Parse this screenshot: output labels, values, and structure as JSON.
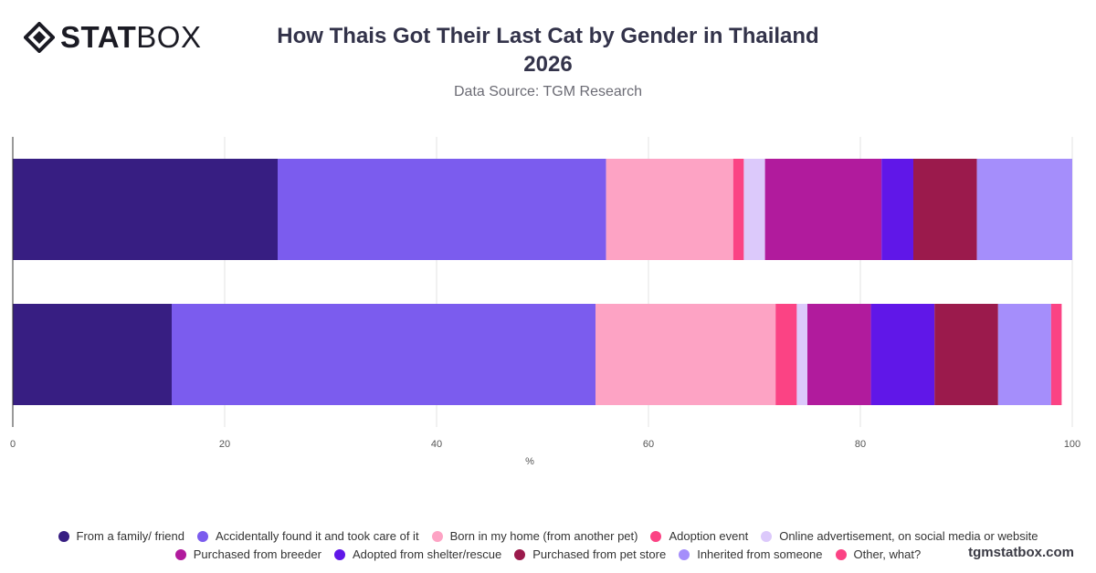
{
  "brand": {
    "logo_bold": "STAT",
    "logo_light": "BOX"
  },
  "title_line1": "How Thais Got Their Last Cat by Gender in Thailand",
  "title_line2": "2026",
  "subtitle": "Data Source: TGM Research",
  "watermark": "tgmstatbox.com",
  "chart_data": {
    "type": "bar",
    "orientation": "horizontal",
    "stacked": true,
    "title": "How Thais Got Their Last Cat by Gender in Thailand 2026",
    "subtitle": "Data Source: TGM Research",
    "xlabel": "%",
    "ylabel": "",
    "xlim": [
      0,
      100
    ],
    "xticks": [
      0,
      20,
      40,
      60,
      80,
      100
    ],
    "grid": true,
    "legend_position": "bottom",
    "categories": [
      "",
      ""
    ],
    "series": [
      {
        "name": "From a family/ friend",
        "color": "#371e82",
        "values": [
          25,
          15
        ]
      },
      {
        "name": "Accidentally found it and took care of it",
        "color": "#7b5cee",
        "values": [
          31,
          40
        ]
      },
      {
        "name": "Born in my home (from another pet)",
        "color": "#fda3c4",
        "values": [
          12,
          17
        ]
      },
      {
        "name": "Adoption event",
        "color": "#fb4384",
        "values": [
          1,
          2
        ]
      },
      {
        "name": "Online advertisement, on social media or website",
        "color": "#dcc9fb",
        "values": [
          2,
          1
        ]
      },
      {
        "name": "Purchased from breeder",
        "color": "#b11b9d",
        "values": [
          11,
          6
        ]
      },
      {
        "name": "Adopted from shelter/rescue",
        "color": "#6017e8",
        "values": [
          3,
          6
        ]
      },
      {
        "name": "Purchased from pet store",
        "color": "#9b1a4c",
        "values": [
          6,
          6
        ]
      },
      {
        "name": "Inherited from someone",
        "color": "#a58efb",
        "values": [
          9,
          5
        ]
      },
      {
        "name": "Other, what?",
        "color": "#fb4384",
        "values": [
          0,
          1
        ]
      }
    ]
  }
}
